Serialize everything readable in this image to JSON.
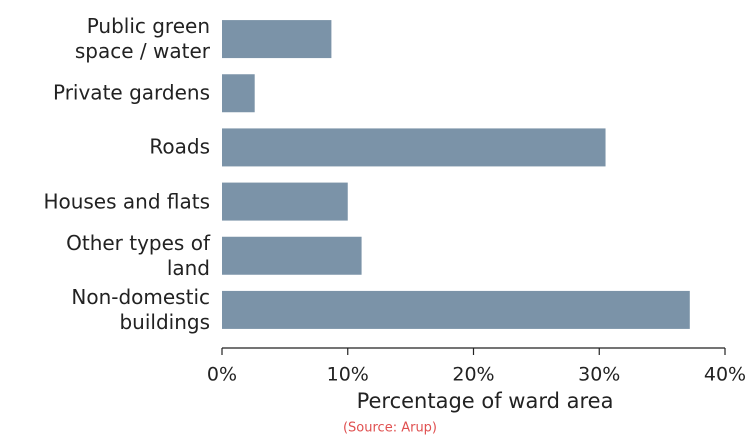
{
  "chart_data": {
    "type": "bar",
    "orientation": "horizontal",
    "categories": [
      "Public green\nspace / water",
      "Private gardens",
      "Roads",
      "Houses and flats",
      "Other types of\nland",
      "Non-domestic\nbuildings"
    ],
    "values": [
      8.7,
      2.6,
      30.5,
      10.0,
      11.1,
      37.2
    ],
    "color": "#7b93a8",
    "xlim": [
      0,
      40
    ],
    "xticks": [
      {
        "value": 0,
        "label": "0%"
      },
      {
        "value": 10,
        "label": "10%"
      },
      {
        "value": 20,
        "label": "20%"
      },
      {
        "value": 30,
        "label": "30%"
      },
      {
        "value": 40,
        "label": "40%"
      }
    ],
    "xlabel": "Percentage of ward area",
    "source": "(Source: Arup)"
  }
}
